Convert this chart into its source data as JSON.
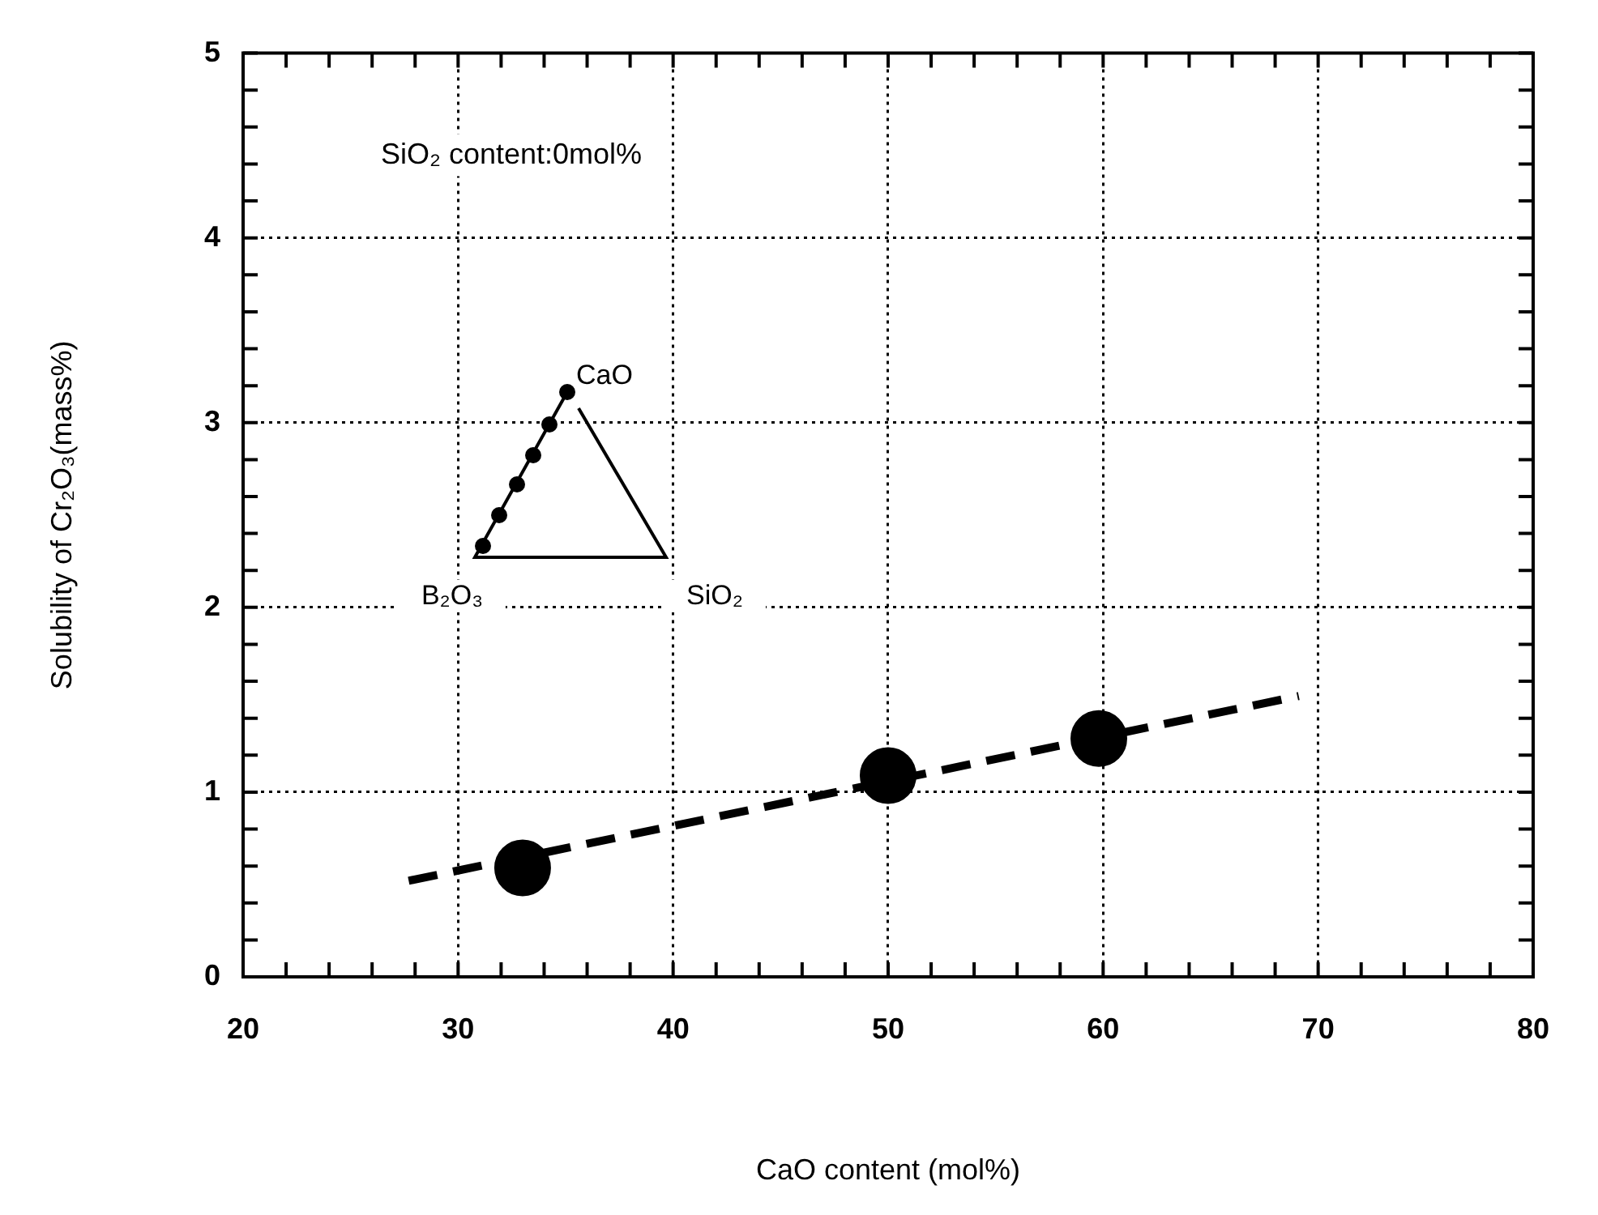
{
  "chart_data": {
    "type": "scatter",
    "xlabel": "CaO content (mol%)",
    "ylabel": "Solubility of Cr₂O₃(mass%)",
    "xlim": [
      20,
      80
    ],
    "xticks": [
      20,
      {
        "value": 22,
        "label": null
      },
      {
        "value": 24,
        "label": null
      },
      {
        "value": 26,
        "label": null
      },
      {
        "value": 28,
        "label": null
      },
      30,
      {
        "value": 32,
        "label": null
      },
      {
        "value": 34,
        "label": null
      },
      {
        "value": 36,
        "label": null
      },
      {
        "value": 38,
        "label": null
      },
      40,
      {
        "value": 42,
        "label": null
      },
      {
        "value": 44,
        "label": null
      },
      {
        "value": 46,
        "label": null
      },
      {
        "value": 48,
        "label": null
      },
      50,
      {
        "value": 52,
        "label": null
      },
      {
        "value": 54,
        "label": null
      },
      {
        "value": 56,
        "label": null
      },
      {
        "value": 58,
        "label": null
      },
      60,
      {
        "value": 62,
        "label": null
      },
      {
        "value": 64,
        "label": null
      },
      {
        "value": 66,
        "label": null
      },
      {
        "value": 68,
        "label": null
      },
      70,
      {
        "value": 72,
        "label": null
      },
      {
        "value": 74,
        "label": null
      },
      {
        "value": 76,
        "label": null
      },
      {
        "value": 78,
        "label": null
      },
      80
    ],
    "ylim": [
      0,
      5
    ],
    "yticks": [
      0,
      {
        "value": 0.2,
        "label": null
      },
      {
        "value": 0.4,
        "label": null
      },
      {
        "value": 0.6,
        "label": null
      },
      {
        "value": 0.8,
        "label": null
      },
      1,
      {
        "value": 1.2,
        "label": null
      },
      {
        "value": 1.4,
        "label": null
      },
      {
        "value": 1.6,
        "label": null
      },
      {
        "value": 1.8,
        "label": null
      },
      2,
      {
        "value": 2.2,
        "label": null
      },
      {
        "value": 2.4,
        "label": null
      },
      {
        "value": 2.6,
        "label": null
      },
      {
        "value": 2.8,
        "label": null
      },
      3,
      {
        "value": 3.2,
        "label": null
      },
      {
        "value": 3.4,
        "label": null
      },
      {
        "value": 3.6,
        "label": null
      },
      {
        "value": 3.8,
        "label": null
      },
      4,
      {
        "value": 4.2,
        "label": null
      },
      {
        "value": 4.4,
        "label": null
      },
      {
        "value": 4.6,
        "label": null
      },
      {
        "value": 4.8,
        "label": null
      },
      5
    ],
    "grid": true,
    "legend": false,
    "series": [
      {
        "type": "scatter",
        "color": "#000000",
        "marker": "circle",
        "x": [
          33,
          50,
          59.8
        ],
        "values": [
          0.59,
          1.09,
          1.29
        ]
      },
      {
        "type": "line",
        "color": "#000000",
        "line_style": "dashed",
        "marker": "none",
        "x": [
          27.7,
          69.1
        ],
        "values": [
          0.52,
          1.52
        ]
      }
    ],
    "annotations": [
      "SiO₂ content:0mol%",
      "CaO",
      "B₂O₃",
      "SiO₂"
    ]
  }
}
